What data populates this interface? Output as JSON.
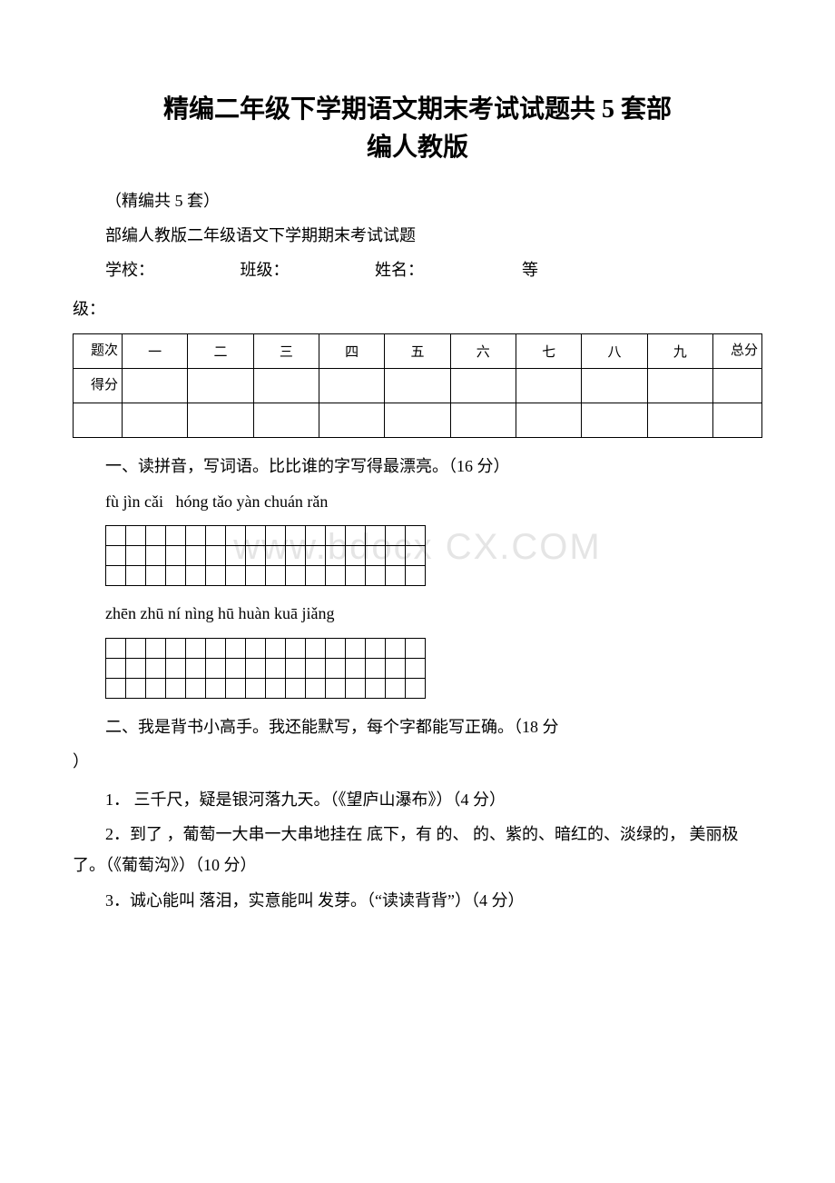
{
  "watermark": "www.bdocx CX.COM",
  "title_line1": "精编二年级下学期语文期末考试试题共 5 套部",
  "title_line2": "编人教版",
  "subtitle": "（精编共 5 套）",
  "header_line": "部编人教版二年级语文下学期期末考试试题",
  "form": {
    "school": "学校：",
    "class": "班级：",
    "name": "姓名：",
    "grade_prefix": "等",
    "grade_suffix": "级："
  },
  "score_table": {
    "row1_label": "题次",
    "cols": [
      "一",
      "二",
      "三",
      "四",
      "五",
      "六",
      "七",
      "八",
      "九"
    ],
    "total": "总分",
    "row2_label": "得分"
  },
  "section1": {
    "heading": "一、读拼音，写词语。比比谁的字写得最漂亮。（16 分）",
    "pinyin1": "fù jìn cǎi   hóng tǎo yàn chuán rǎn",
    "pinyin2": "zhēn zhū ní nìng hū huàn kuā jiǎng"
  },
  "section2": {
    "heading": "二、我是背书小高手。我还能默写，每个字都能写正确。（18 分）",
    "item1": "1．  三千尺，疑是银河落九天。（《望庐山瀑布》）（4 分）",
    "item2": "2．到了  ，葡萄一大串一大串地挂在   底下，有   的、  的、紫的、暗红的、淡绿的，  美丽极了。（《葡萄沟》）（10 分）",
    "item3": "3．诚心能叫 落泪，实意能叫 发芽。（“读读背背”）（4 分）"
  },
  "grid": {
    "rows": 3,
    "cols": 16
  }
}
